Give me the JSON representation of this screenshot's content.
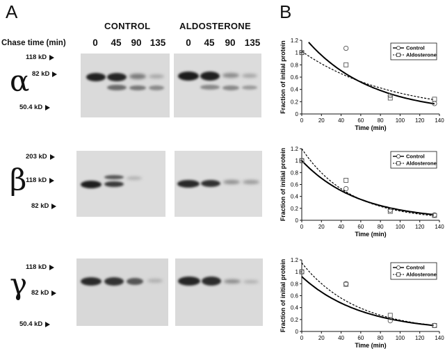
{
  "panel_a": {
    "letter": "A",
    "conditions": [
      "CONTROL",
      "ALDOSTERONE"
    ],
    "chase_label": "Chase time (min)",
    "lanes_control": [
      "0",
      "45",
      "90",
      "135"
    ],
    "lanes_aldo": [
      "0",
      "45",
      "90",
      "135"
    ],
    "blots": [
      {
        "subunit": "α",
        "markers": [
          "118 kD",
          "82 kD",
          "50.4 kD"
        ]
      },
      {
        "subunit": "β",
        "markers": [
          "203 kD",
          "118 kD",
          "82 kD"
        ]
      },
      {
        "subunit": "γ",
        "markers": [
          "118 kD",
          "82 kD",
          "50.4 kD"
        ]
      }
    ]
  },
  "panel_b": {
    "letter": "B"
  },
  "chart_data": [
    {
      "type": "line",
      "xlabel": "Time (min)",
      "ylabel": "Fraction of initial protein",
      "xlim": [
        0,
        140
      ],
      "ylim": [
        0,
        1.2
      ],
      "xticks": [
        0,
        20,
        40,
        60,
        80,
        100,
        120,
        140
      ],
      "yticks": [
        0,
        0.2,
        0.4,
        0.6,
        0.8,
        1,
        1.2
      ],
      "legend": "top-right",
      "series": [
        {
          "name": "Control",
          "marker": "circle",
          "style": "solid",
          "points": [
            [
              0,
              1.0
            ],
            [
              45,
              1.07
            ],
            [
              90,
              0.3
            ],
            [
              135,
              0.17
            ]
          ],
          "fit": {
            "a": 1.3,
            "k": 0.0153,
            "x_start": 7
          }
        },
        {
          "name": "Aldosterone",
          "marker": "square",
          "style": "dashed",
          "points": [
            [
              0,
              1.0
            ],
            [
              45,
              0.8
            ],
            [
              90,
              0.26
            ],
            [
              135,
              0.24
            ]
          ],
          "fit": {
            "a": 1.02,
            "k": 0.011,
            "x_start": 0
          }
        }
      ]
    },
    {
      "type": "line",
      "xlabel": "Time (min)",
      "ylabel": "Fraction of initial protein",
      "xlim": [
        0,
        140
      ],
      "ylim": [
        0,
        1.2
      ],
      "xticks": [
        0,
        20,
        40,
        60,
        80,
        100,
        120,
        140
      ],
      "yticks": [
        0,
        0.2,
        0.4,
        0.6,
        0.8,
        1,
        1.2
      ],
      "legend": "top-right",
      "series": [
        {
          "name": "Control",
          "marker": "circle",
          "style": "solid",
          "points": [
            [
              0,
              1.0
            ],
            [
              45,
              0.53
            ],
            [
              90,
              0.17
            ],
            [
              135,
              0.09
            ]
          ],
          "fit": {
            "a": 1.0,
            "k": 0.0175,
            "x_start": 0
          }
        },
        {
          "name": "Aldosterone",
          "marker": "square",
          "style": "dashed",
          "points": [
            [
              0,
              1.0
            ],
            [
              45,
              0.67
            ],
            [
              90,
              0.15
            ],
            [
              135,
              0.08
            ]
          ],
          "fit": {
            "a": 1.2,
            "k": 0.0205,
            "x_start": 0
          }
        }
      ]
    },
    {
      "type": "line",
      "xlabel": "Time (min)",
      "ylabel": "Fraction of initial protein",
      "xlim": [
        0,
        140
      ],
      "ylim": [
        0,
        1.2
      ],
      "xticks": [
        0,
        20,
        40,
        60,
        80,
        100,
        120,
        140
      ],
      "yticks": [
        0,
        0.2,
        0.4,
        0.6,
        0.8,
        1,
        1.2
      ],
      "legend": "top-right",
      "series": [
        {
          "name": "Control",
          "marker": "circle",
          "style": "solid",
          "points": [
            [
              0,
              1.0
            ],
            [
              45,
              0.8
            ],
            [
              90,
              0.18
            ],
            [
              135,
              0.1
            ]
          ],
          "fit": {
            "a": 0.92,
            "k": 0.0165,
            "x_start": 0
          }
        },
        {
          "name": "Aldosterone",
          "marker": "square",
          "style": "dashed",
          "points": [
            [
              0,
              1.0
            ],
            [
              45,
              0.79
            ],
            [
              90,
              0.27
            ],
            [
              135,
              0.1
            ]
          ],
          "fit": {
            "a": 1.15,
            "k": 0.018,
            "x_start": 0
          }
        }
      ]
    }
  ]
}
